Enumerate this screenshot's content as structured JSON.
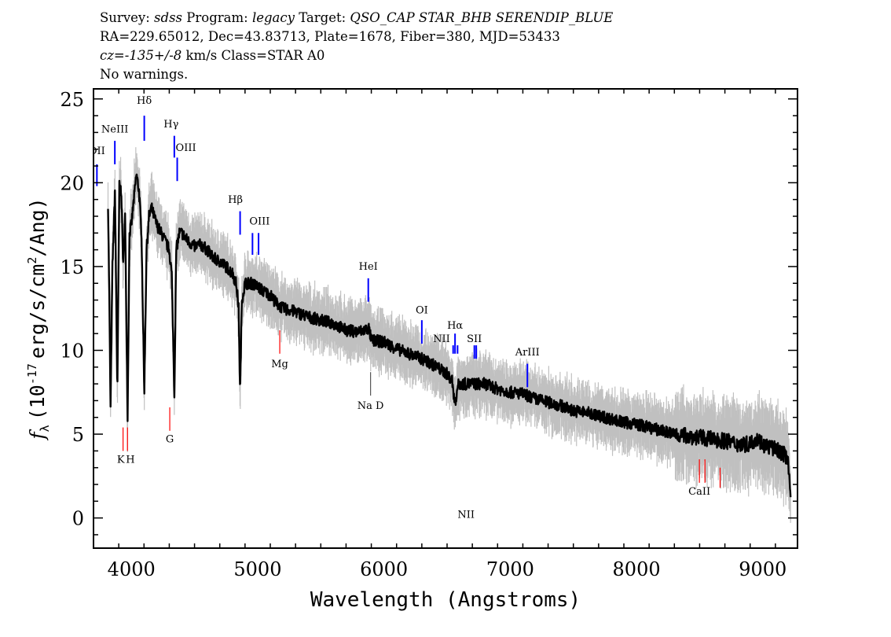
{
  "header": {
    "line1": {
      "survey_label": "Survey:",
      "survey": "sdss",
      "program_label": "Program:",
      "program": "legacy",
      "target_label": "Target:",
      "target": "QSO_CAP STAR_BHB SERENDIP_BLUE"
    },
    "line2": "RA=229.65012, Dec=43.83713, Plate=1678, Fiber=380, MJD=53433",
    "line3": {
      "cz": "cz=-135+/-8",
      "unit": "km/s",
      "class": "Class=STAR A0"
    },
    "line4": "No warnings."
  },
  "chart_data": {
    "type": "line",
    "xlabel": "Wavelength (Angstroms)",
    "ylabel": {
      "symbol": "f",
      "sub": "λ",
      "pre": "(10",
      "exp": "-17",
      "mid": "erg/s/cm",
      "exp2": "2",
      "post": "/Ang)"
    },
    "xlim": [
      3700,
      9275
    ],
    "ylim": [
      -1.8,
      25.6
    ],
    "xticks": [
      4000,
      5000,
      6000,
      7000,
      8000,
      9000
    ],
    "yticks": [
      0,
      5,
      10,
      15,
      20,
      25
    ],
    "grid": false,
    "colors": {
      "spectrum": "#000000",
      "error_band": "#c0c0c0",
      "emission": "#0000ff",
      "absorption": "#ff0000",
      "sky": "#555555"
    },
    "error": 1.0,
    "wavelength": [
      3815,
      3825,
      3835,
      3850,
      3870,
      3889,
      3905,
      3920,
      3935,
      3950,
      3970,
      3985,
      4000,
      4020,
      4040,
      4060,
      4080,
      4102,
      4120,
      4140,
      4160,
      4200,
      4250,
      4300,
      4320,
      4340,
      4355,
      4380,
      4400,
      4450,
      4500,
      4550,
      4600,
      4650,
      4700,
      4750,
      4800,
      4830,
      4850,
      4861,
      4875,
      4900,
      4950,
      5000,
      5050,
      5100,
      5150,
      5200,
      5300,
      5400,
      5500,
      5600,
      5700,
      5800,
      5880,
      5900,
      6000,
      6100,
      6200,
      6300,
      6400,
      6500,
      6540,
      6563,
      6585,
      6600,
      6700,
      6800,
      6900,
      7000,
      7100,
      7200,
      7300,
      7400,
      7500,
      7600,
      7700,
      7800,
      7900,
      8000,
      8100,
      8200,
      8300,
      8400,
      8500,
      8600,
      8700,
      8800,
      8900,
      8950,
      9000,
      9100,
      9150,
      9200,
      9210,
      9220
    ],
    "flux": [
      18.8,
      13.2,
      6.5,
      15,
      19.5,
      7.5,
      19.8,
      19.5,
      15,
      18,
      6,
      17,
      17.5,
      19,
      20.5,
      19.5,
      17,
      7.5,
      16,
      18,
      18.5,
      17.5,
      16.8,
      16,
      14.5,
      7.3,
      16,
      17,
      17,
      16.5,
      16.2,
      16.3,
      16,
      15.5,
      15.3,
      15,
      14.6,
      14,
      12.5,
      7.3,
      13,
      14,
      14,
      13.8,
      13.5,
      13.3,
      12.8,
      12.5,
      12.3,
      12.0,
      11.8,
      11.6,
      11.2,
      11.1,
      11.3,
      10.6,
      10.5,
      10.1,
      9.8,
      9.5,
      9.1,
      8.6,
      8.2,
      6.8,
      7.9,
      8.0,
      8.0,
      8.0,
      7.7,
      7.5,
      7.4,
      7.1,
      6.9,
      6.7,
      6.4,
      6.3,
      6.1,
      5.9,
      5.7,
      5.6,
      5.4,
      5.2,
      5.0,
      4.9,
      4.8,
      4.7,
      4.6,
      4.4,
      4.4,
      4.8,
      4.4,
      4.1,
      3.9,
      3.6,
      2.5,
      1.2
    ],
    "lines": [
      {
        "label": "OII",
        "wavelength": 3727,
        "kind": "emission"
      },
      {
        "label": "NeIII",
        "wavelength": 3869,
        "kind": "emission"
      },
      {
        "label": "Hδ",
        "wavelength": 4102,
        "kind": "emission"
      },
      {
        "label": "Hγ",
        "wavelength": 4340,
        "kind": "emission"
      },
      {
        "label": "OIII",
        "wavelength": 4363,
        "kind": "emission"
      },
      {
        "label": "Hβ",
        "wavelength": 4861,
        "kind": "emission"
      },
      {
        "label": "OIII",
        "wavelength": 4959,
        "kind": "emission"
      },
      {
        "label": "",
        "wavelength": 5007,
        "kind": "emission"
      },
      {
        "label": "HeI",
        "wavelength": 5876,
        "kind": "emission"
      },
      {
        "label": "OI",
        "wavelength": 6300,
        "kind": "emission"
      },
      {
        "label": "NII",
        "wavelength": 6548,
        "kind": "emission"
      },
      {
        "label": "Hα",
        "wavelength": 6563,
        "kind": "emission"
      },
      {
        "label": "NII",
        "wavelength": 6583,
        "kind": "emission"
      },
      {
        "label": "SII",
        "wavelength": 6716,
        "kind": "emission"
      },
      {
        "label": "",
        "wavelength": 6731,
        "kind": "emission"
      },
      {
        "label": "ArIII",
        "wavelength": 7136,
        "kind": "emission"
      },
      {
        "label": "K",
        "wavelength": 3934,
        "kind": "absorption"
      },
      {
        "label": "H",
        "wavelength": 3969,
        "kind": "absorption"
      },
      {
        "label": "G",
        "wavelength": 4304,
        "kind": "absorption"
      },
      {
        "label": "Mg",
        "wavelength": 5175,
        "kind": "absorption"
      },
      {
        "label": "Na D",
        "wavelength": 5894,
        "kind": "sky"
      },
      {
        "label": "CaII",
        "wavelength": 8498,
        "kind": "absorption"
      },
      {
        "label": "",
        "wavelength": 8542,
        "kind": "absorption"
      },
      {
        "label": "",
        "wavelength": 8662,
        "kind": "absorption"
      }
    ]
  }
}
